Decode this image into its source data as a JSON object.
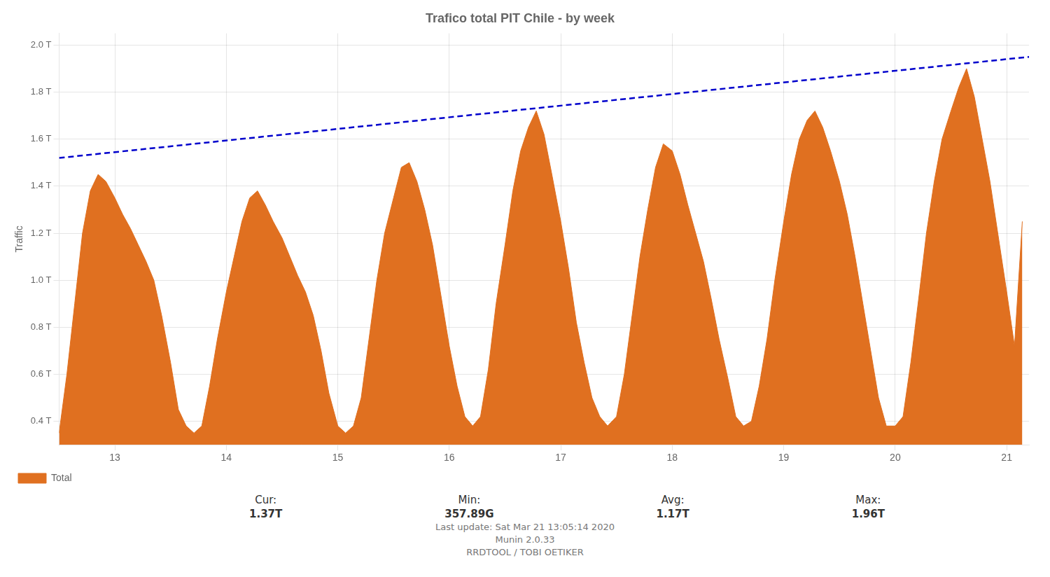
{
  "chart_data": {
    "type": "line",
    "title": "Trafico total PIT Chile - by week",
    "ylabel": "Traffic",
    "x": [
      12.5,
      12.57,
      12.64,
      12.71,
      12.78,
      12.85,
      12.92,
      13.0,
      13.07,
      13.14,
      13.21,
      13.28,
      13.35,
      13.42,
      13.5,
      13.57,
      13.64,
      13.71,
      13.78,
      13.85,
      13.92,
      14.0,
      14.07,
      14.14,
      14.21,
      14.28,
      14.35,
      14.42,
      14.5,
      14.57,
      14.64,
      14.71,
      14.78,
      14.85,
      14.92,
      15.0,
      15.07,
      15.14,
      15.21,
      15.28,
      15.35,
      15.42,
      15.5,
      15.57,
      15.64,
      15.71,
      15.78,
      15.85,
      15.92,
      16.0,
      16.07,
      16.14,
      16.21,
      16.28,
      16.35,
      16.42,
      16.5,
      16.57,
      16.64,
      16.71,
      16.78,
      16.85,
      16.92,
      17.0,
      17.07,
      17.14,
      17.21,
      17.28,
      17.35,
      17.42,
      17.5,
      17.57,
      17.64,
      17.71,
      17.78,
      17.85,
      17.92,
      18.0,
      18.07,
      18.14,
      18.21,
      18.28,
      18.35,
      18.42,
      18.5,
      18.57,
      18.64,
      18.71,
      18.78,
      18.85,
      18.92,
      19.0,
      19.07,
      19.14,
      19.21,
      19.28,
      19.35,
      19.42,
      19.5,
      19.57,
      19.64,
      19.71,
      19.78,
      19.85,
      19.92,
      20.0,
      20.07,
      20.14,
      20.21,
      20.28,
      20.35,
      20.42,
      20.5,
      20.57,
      20.64,
      20.71,
      20.78,
      20.85,
      20.92,
      21.0,
      21.07,
      21.14
    ],
    "series": [
      {
        "name": "Total",
        "type": "area",
        "color": "#e07020",
        "values": [
          0.35,
          0.6,
          0.9,
          1.2,
          1.38,
          1.45,
          1.42,
          1.35,
          1.28,
          1.22,
          1.15,
          1.08,
          1.0,
          0.85,
          0.65,
          0.45,
          0.38,
          0.35,
          0.38,
          0.55,
          0.75,
          0.95,
          1.1,
          1.25,
          1.35,
          1.38,
          1.32,
          1.25,
          1.18,
          1.1,
          1.02,
          0.95,
          0.85,
          0.7,
          0.52,
          0.38,
          0.35,
          0.38,
          0.5,
          0.75,
          1.0,
          1.2,
          1.35,
          1.48,
          1.5,
          1.42,
          1.3,
          1.15,
          0.95,
          0.72,
          0.55,
          0.42,
          0.38,
          0.42,
          0.62,
          0.9,
          1.15,
          1.38,
          1.55,
          1.65,
          1.72,
          1.62,
          1.45,
          1.25,
          1.05,
          0.82,
          0.65,
          0.5,
          0.42,
          0.38,
          0.42,
          0.6,
          0.85,
          1.1,
          1.3,
          1.48,
          1.58,
          1.55,
          1.45,
          1.32,
          1.2,
          1.08,
          0.92,
          0.75,
          0.58,
          0.42,
          0.38,
          0.4,
          0.55,
          0.75,
          1.0,
          1.25,
          1.45,
          1.6,
          1.68,
          1.72,
          1.65,
          1.55,
          1.42,
          1.28,
          1.1,
          0.9,
          0.7,
          0.5,
          0.38,
          0.38,
          0.42,
          0.65,
          0.92,
          1.2,
          1.42,
          1.6,
          1.72,
          1.82,
          1.9,
          1.78,
          1.6,
          1.42,
          1.2,
          0.95,
          0.72,
          1.25
        ]
      },
      {
        "type": "line",
        "color": "#0000cc",
        "line_style": "dashed",
        "x": [
          12.5,
          21.2
        ],
        "values": [
          1.52,
          1.95
        ]
      }
    ],
    "xlim": [
      12.5,
      21.2
    ],
    "xticks": [
      13,
      14,
      15,
      16,
      17,
      18,
      19,
      20,
      21
    ],
    "ylim": [
      0.3,
      2.05
    ],
    "yticks": [
      {
        "value": 0.4,
        "label": "0.4 T"
      },
      {
        "value": 0.6,
        "label": "0.6 T"
      },
      {
        "value": 0.8,
        "label": "0.8 T"
      },
      {
        "value": 1.0,
        "label": "1.0 T"
      },
      {
        "value": 1.2,
        "label": "1.2 T"
      },
      {
        "value": 1.4,
        "label": "1.4 T"
      },
      {
        "value": 1.6,
        "label": "1.6 T"
      },
      {
        "value": 1.8,
        "label": "1.8 T"
      },
      {
        "value": 2.0,
        "label": "2.0 T"
      }
    ],
    "grid": true,
    "legend": "lower left",
    "annotations": [
      [
        "Cur:",
        "1.37T"
      ],
      [
        "Min:",
        "357.89G"
      ],
      [
        "Avg:",
        "1.17T"
      ],
      [
        "Max:",
        "1.96T"
      ],
      [
        "Last update:  Sat Mar 21 13:05:14 2020"
      ],
      [
        "Munin 2.0.33"
      ],
      [
        "RRDTOOL / TOBI OETIKER"
      ]
    ]
  }
}
